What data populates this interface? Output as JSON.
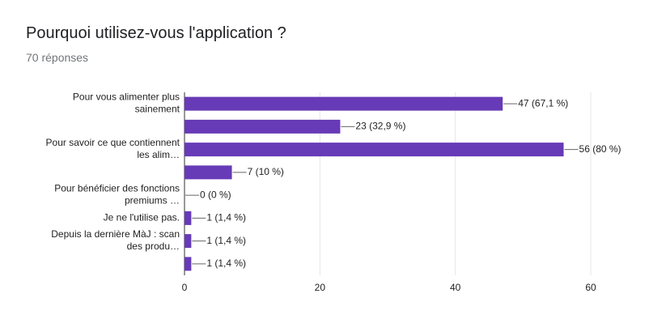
{
  "chart_data": {
    "type": "bar",
    "orientation": "horizontal",
    "title": "Pourquoi utilisez-vous l'application ?",
    "subtitle": "70 réponses",
    "categories": [
      "Pour vous alimenter plus\nsainement",
      null,
      "Pour savoir ce que contiennent\nles alim…",
      null,
      "Pour bénéficier des fonctions\npremiums …",
      "Je ne l'utilise pas.",
      "Depuis la dernière MàJ : scan\ndes produ…",
      null
    ],
    "values": [
      47,
      23,
      56,
      7,
      0,
      1,
      1,
      1
    ],
    "value_labels": [
      "47 (67,1 %)",
      "23 (32,9 %)",
      "56 (80 %)",
      "7 (10 %)",
      "0 (0 %)",
      "1 (1,4 %)",
      "1 (1,4 %)",
      "1 (1,4 %)"
    ],
    "color": "#673ab7",
    "xlim": [
      0,
      60
    ],
    "xticks": [
      0,
      20,
      40,
      60
    ],
    "grid": true
  }
}
